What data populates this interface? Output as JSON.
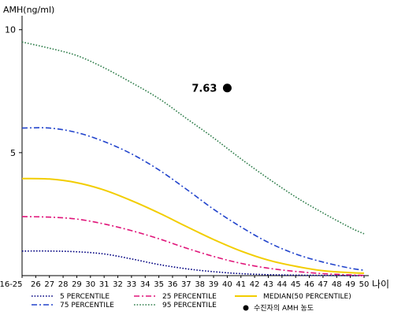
{
  "chart_data": {
    "type": "line",
    "ylabel": "AMH(ng/ml)",
    "xlabel": "나이",
    "y_ticks": [
      10,
      5
    ],
    "ylim": [
      0,
      10.6
    ],
    "x_ticks": [
      "16-25",
      "26",
      "27",
      "28",
      "29",
      "30",
      "31",
      "32",
      "33",
      "34",
      "35",
      "36",
      "37",
      "38",
      "39",
      "40",
      "41",
      "42",
      "43",
      "44",
      "45",
      "46",
      "47",
      "48",
      "49",
      "50"
    ],
    "x_numeric": [
      25,
      26,
      27,
      28,
      29,
      30,
      31,
      32,
      33,
      34,
      35,
      36,
      37,
      38,
      39,
      40,
      41,
      42,
      43,
      44,
      45,
      46,
      47,
      48,
      49,
      50
    ],
    "legend_placement": "bottom",
    "series": [
      {
        "name": "5 PERCENTILE",
        "style": "dotted",
        "color": "#000080",
        "x": [
          25,
          27,
          29,
          31,
          33,
          35,
          37,
          39,
          41,
          43,
          45,
          47,
          49,
          50
        ],
        "y": [
          1.0,
          1.0,
          0.97,
          0.88,
          0.68,
          0.45,
          0.28,
          0.16,
          0.08,
          0.04,
          0.02,
          0.01,
          0.0,
          0.0
        ]
      },
      {
        "name": "25 PERCENTILE",
        "style": "dash-dot",
        "color": "#e0157a",
        "x": [
          25,
          27,
          29,
          31,
          33,
          35,
          37,
          39,
          41,
          43,
          45,
          47,
          49,
          50
        ],
        "y": [
          2.4,
          2.38,
          2.3,
          2.1,
          1.83,
          1.5,
          1.12,
          0.78,
          0.5,
          0.3,
          0.17,
          0.08,
          0.03,
          0.01
        ]
      },
      {
        "name": "MEDIAN(50 PERCENTILE)",
        "style": "solid",
        "color": "#f2cd00",
        "x": [
          25,
          27,
          29,
          31,
          33,
          35,
          37,
          39,
          41,
          43,
          45,
          47,
          49,
          50
        ],
        "y": [
          3.95,
          3.93,
          3.78,
          3.48,
          3.05,
          2.55,
          2.0,
          1.47,
          1.0,
          0.63,
          0.38,
          0.2,
          0.12,
          0.1
        ]
      },
      {
        "name": "75 PERCENTILE",
        "style": "dash-dot",
        "color": "#2244cc",
        "x": [
          25,
          27,
          29,
          31,
          33,
          35,
          37,
          39,
          41,
          43,
          45,
          47,
          49,
          50
        ],
        "y": [
          6.0,
          6.0,
          5.82,
          5.45,
          4.95,
          4.3,
          3.52,
          2.7,
          1.98,
          1.35,
          0.88,
          0.55,
          0.3,
          0.22
        ]
      },
      {
        "name": "95 PERCENTILE",
        "style": "dotted",
        "color": "#2e7d4a",
        "x": [
          25,
          27,
          29,
          31,
          33,
          35,
          37,
          39,
          41,
          43,
          45,
          47,
          49,
          50
        ],
        "y": [
          9.5,
          9.25,
          8.95,
          8.45,
          7.85,
          7.2,
          6.4,
          5.6,
          4.75,
          3.95,
          3.2,
          2.55,
          1.95,
          1.7
        ]
      }
    ],
    "point": {
      "name": "수진자의 AMH 농도",
      "x": 40,
      "y": 7.63,
      "label": "7.63",
      "color": "#000000"
    }
  }
}
